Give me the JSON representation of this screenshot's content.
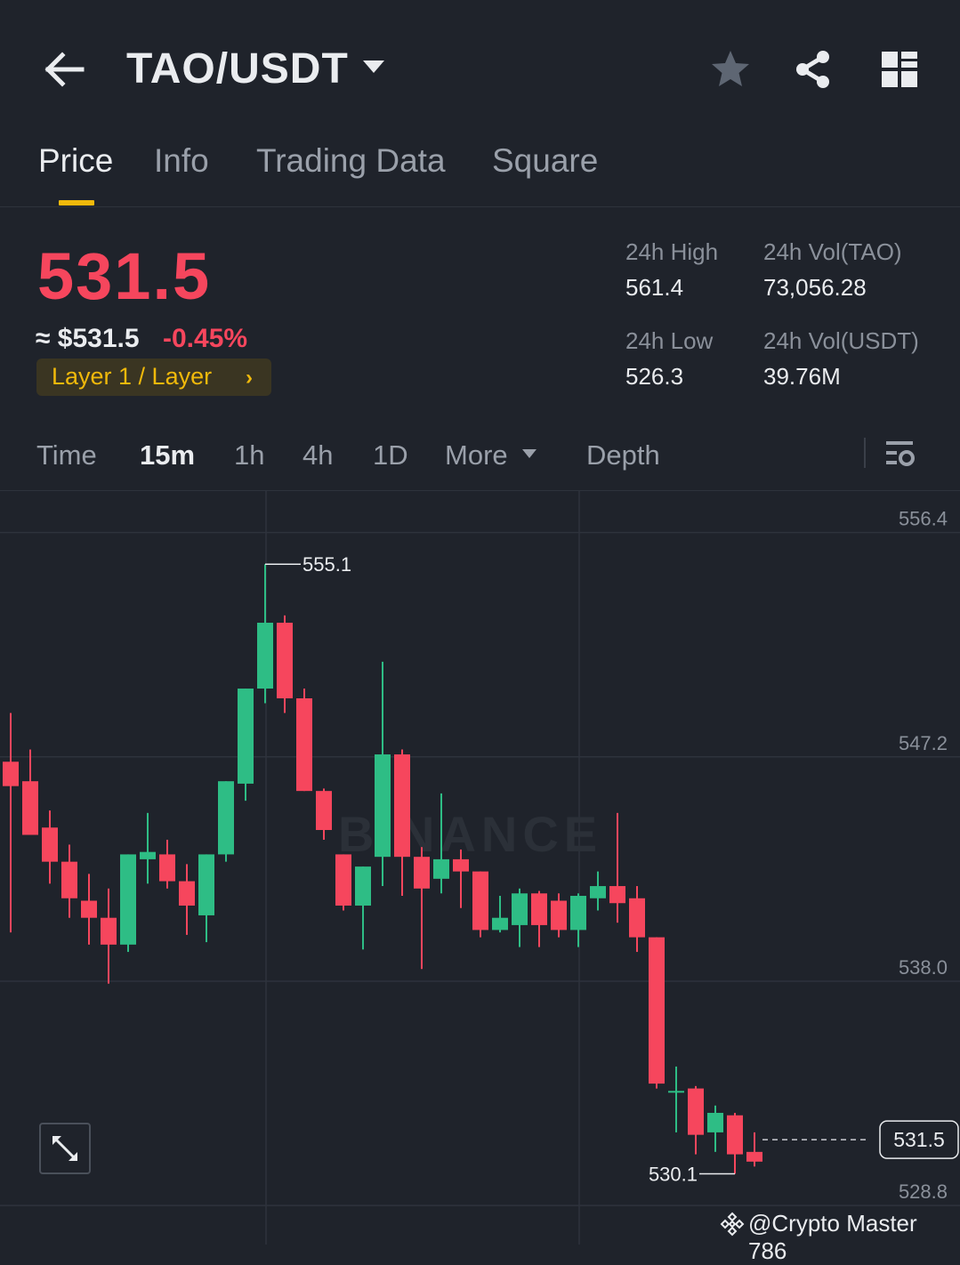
{
  "header": {
    "pair": "TAO/USDT"
  },
  "tabs": [
    {
      "label": "Price"
    },
    {
      "label": "Info"
    },
    {
      "label": "Trading Data"
    },
    {
      "label": "Square"
    }
  ],
  "price": {
    "last": "531.5",
    "approx_usd": "≈ $531.5",
    "change": "-0.45%",
    "tag": "Layer 1 / Layer",
    "high_label": "24h High",
    "high_value": "561.4",
    "low_label": "24h Low",
    "low_value": "526.3",
    "vol_base_label": "24h Vol(TAO)",
    "vol_base_value": "73,056.28",
    "vol_quote_label": "24h Vol(USDT)",
    "vol_quote_value": "39.76M"
  },
  "intervals": {
    "time": "Time",
    "m15": "15m",
    "h1": "1h",
    "h4": "4h",
    "d1": "1D",
    "more": "More",
    "depth": "Depth"
  },
  "colors": {
    "up": "#2ebd85",
    "down": "#f6465d",
    "accent": "#f0b90b",
    "background": "#1f232b"
  },
  "chart_data": {
    "type": "candlestick",
    "y_ticks": [
      556.4,
      547.2,
      538.0,
      528.8
    ],
    "ylim": [
      527.2,
      558.1
    ],
    "last_price": 531.5,
    "high_marker": 555.1,
    "low_marker": 530.1,
    "watermark": "BINANCE",
    "candles": [
      {
        "o": 547.0,
        "h": 549.0,
        "l": 540.0,
        "c": 546.0
      },
      {
        "o": 546.2,
        "h": 547.5,
        "l": 544.0,
        "c": 544.0
      },
      {
        "o": 544.3,
        "h": 545.0,
        "l": 542.0,
        "c": 542.9
      },
      {
        "o": 542.9,
        "h": 543.6,
        "l": 540.6,
        "c": 541.4
      },
      {
        "o": 541.3,
        "h": 542.4,
        "l": 539.5,
        "c": 540.6
      },
      {
        "o": 540.6,
        "h": 541.8,
        "l": 537.9,
        "c": 539.5
      },
      {
        "o": 539.5,
        "h": 543.2,
        "l": 539.2,
        "c": 543.2
      },
      {
        "o": 543.0,
        "h": 544.9,
        "l": 542.0,
        "c": 543.3
      },
      {
        "o": 543.2,
        "h": 543.8,
        "l": 541.8,
        "c": 542.1
      },
      {
        "o": 542.1,
        "h": 542.8,
        "l": 539.9,
        "c": 541.1
      },
      {
        "o": 540.7,
        "h": 543.2,
        "l": 539.6,
        "c": 543.2
      },
      {
        "o": 543.2,
        "h": 546.2,
        "l": 542.9,
        "c": 546.2
      },
      {
        "o": 546.1,
        "h": 550.0,
        "l": 545.4,
        "c": 550.0
      },
      {
        "o": 550.0,
        "h": 555.1,
        "l": 549.4,
        "c": 552.7
      },
      {
        "o": 552.7,
        "h": 553.0,
        "l": 549.0,
        "c": 549.6
      },
      {
        "o": 549.6,
        "h": 550.0,
        "l": 545.8,
        "c": 545.8
      },
      {
        "o": 545.8,
        "h": 545.9,
        "l": 543.8,
        "c": 544.2
      },
      {
        "o": 543.2,
        "h": 543.2,
        "l": 540.9,
        "c": 541.1
      },
      {
        "o": 541.1,
        "h": 542.7,
        "l": 539.3,
        "c": 542.7
      },
      {
        "o": 543.1,
        "h": 551.1,
        "l": 541.9,
        "c": 547.3
      },
      {
        "o": 547.3,
        "h": 547.5,
        "l": 541.5,
        "c": 543.1
      },
      {
        "o": 543.1,
        "h": 543.5,
        "l": 538.5,
        "c": 541.8
      },
      {
        "o": 542.2,
        "h": 545.7,
        "l": 541.6,
        "c": 543.0
      },
      {
        "o": 543.0,
        "h": 543.4,
        "l": 541.0,
        "c": 542.5
      },
      {
        "o": 542.5,
        "h": 542.5,
        "l": 539.8,
        "c": 540.1
      },
      {
        "o": 540.1,
        "h": 541.5,
        "l": 540.0,
        "c": 540.6
      },
      {
        "o": 540.3,
        "h": 541.8,
        "l": 539.4,
        "c": 541.6
      },
      {
        "o": 541.6,
        "h": 541.7,
        "l": 539.4,
        "c": 540.3
      },
      {
        "o": 541.3,
        "h": 541.6,
        "l": 539.8,
        "c": 540.1
      },
      {
        "o": 540.1,
        "h": 541.6,
        "l": 539.4,
        "c": 541.5
      },
      {
        "o": 541.4,
        "h": 542.5,
        "l": 540.9,
        "c": 541.9
      },
      {
        "o": 541.9,
        "h": 544.9,
        "l": 540.4,
        "c": 541.2
      },
      {
        "o": 541.4,
        "h": 541.9,
        "l": 539.2,
        "c": 539.8
      },
      {
        "o": 539.8,
        "h": 539.8,
        "l": 533.6,
        "c": 533.8
      },
      {
        "o": 533.5,
        "h": 534.5,
        "l": 531.8,
        "c": 533.5
      },
      {
        "o": 533.6,
        "h": 533.7,
        "l": 530.9,
        "c": 531.7
      },
      {
        "o": 531.8,
        "h": 532.9,
        "l": 531.0,
        "c": 532.6
      },
      {
        "o": 532.5,
        "h": 532.6,
        "l": 530.1,
        "c": 530.9
      },
      {
        "o": 531.0,
        "h": 531.8,
        "l": 530.4,
        "c": 530.6
      }
    ]
  },
  "footer": {
    "credit": "@Crypto Master 786"
  }
}
